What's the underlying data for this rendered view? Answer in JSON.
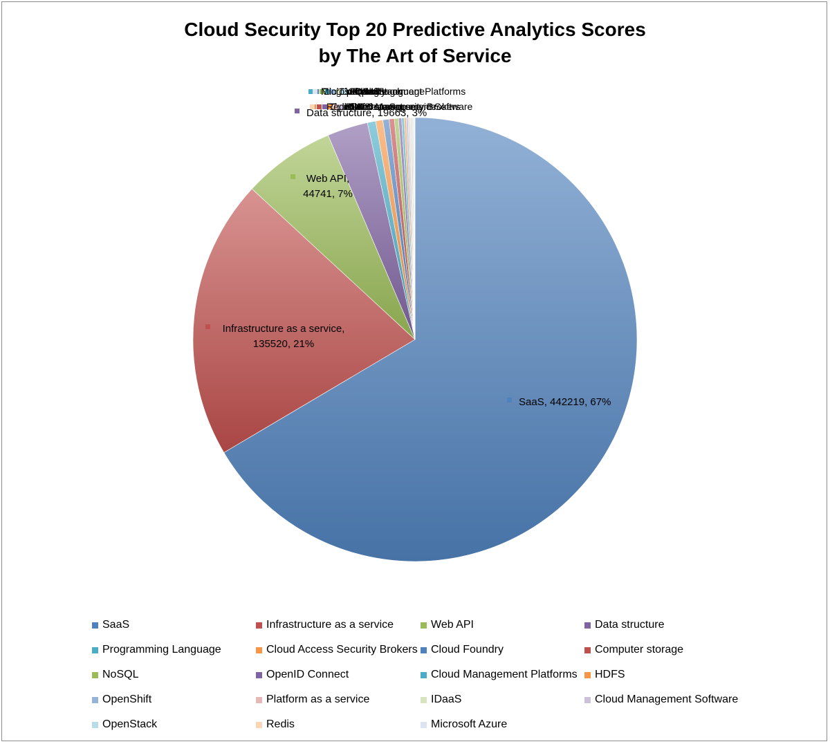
{
  "chart_data": {
    "type": "pie",
    "title": "Cloud Security Top 20 Predictive Analytics Scores",
    "subtitle": "by The Art of Service",
    "series": [
      {
        "categories": [
          "SaaS",
          "Infrastructure as a service",
          "Web API",
          "Data structure",
          "Programming Language",
          "Cloud Access Security Brokers",
          "Cloud Foundry",
          "Computer storage",
          "NoSQL",
          "OpenID Connect",
          "Cloud Management Platforms",
          "HDFS",
          "OpenShift",
          "Platform as a service",
          "IDaaS",
          "Cloud Management Software",
          "OpenStack",
          "Redis",
          "Microsoft Azure"
        ],
        "values": [
          442219,
          135520,
          44741,
          19663,
          4000,
          3500,
          3000,
          2500,
          2000,
          1500,
          1200,
          1000,
          900,
          800,
          700,
          600,
          500,
          400,
          300
        ]
      }
    ],
    "data_labels": [
      {
        "category": "SaaS",
        "text": "SaaS, 442219, 67%"
      },
      {
        "category": "Infrastructure as a service",
        "line1": "Infrastructure as a service,",
        "line2": "135520, 21%"
      },
      {
        "category": "Web API",
        "line1": "Web API,",
        "line2": "44741, 7%"
      },
      {
        "category": "Data structure",
        "text": "Data structure, 19663, 3%"
      }
    ],
    "legend_position": "bottom",
    "colors": [
      "#4f81bd",
      "#c0504d",
      "#9bbb59",
      "#8064a2",
      "#4bacc6",
      "#f79646",
      "#4f81bd",
      "#c0504d",
      "#9bbb59",
      "#8064a2",
      "#4bacc6",
      "#f79646",
      "#95b3d7",
      "#e6b9b8",
      "#d7e4bd",
      "#ccc1da",
      "#b7dee8",
      "#fcd5b5",
      "#dbe5f1"
    ]
  }
}
